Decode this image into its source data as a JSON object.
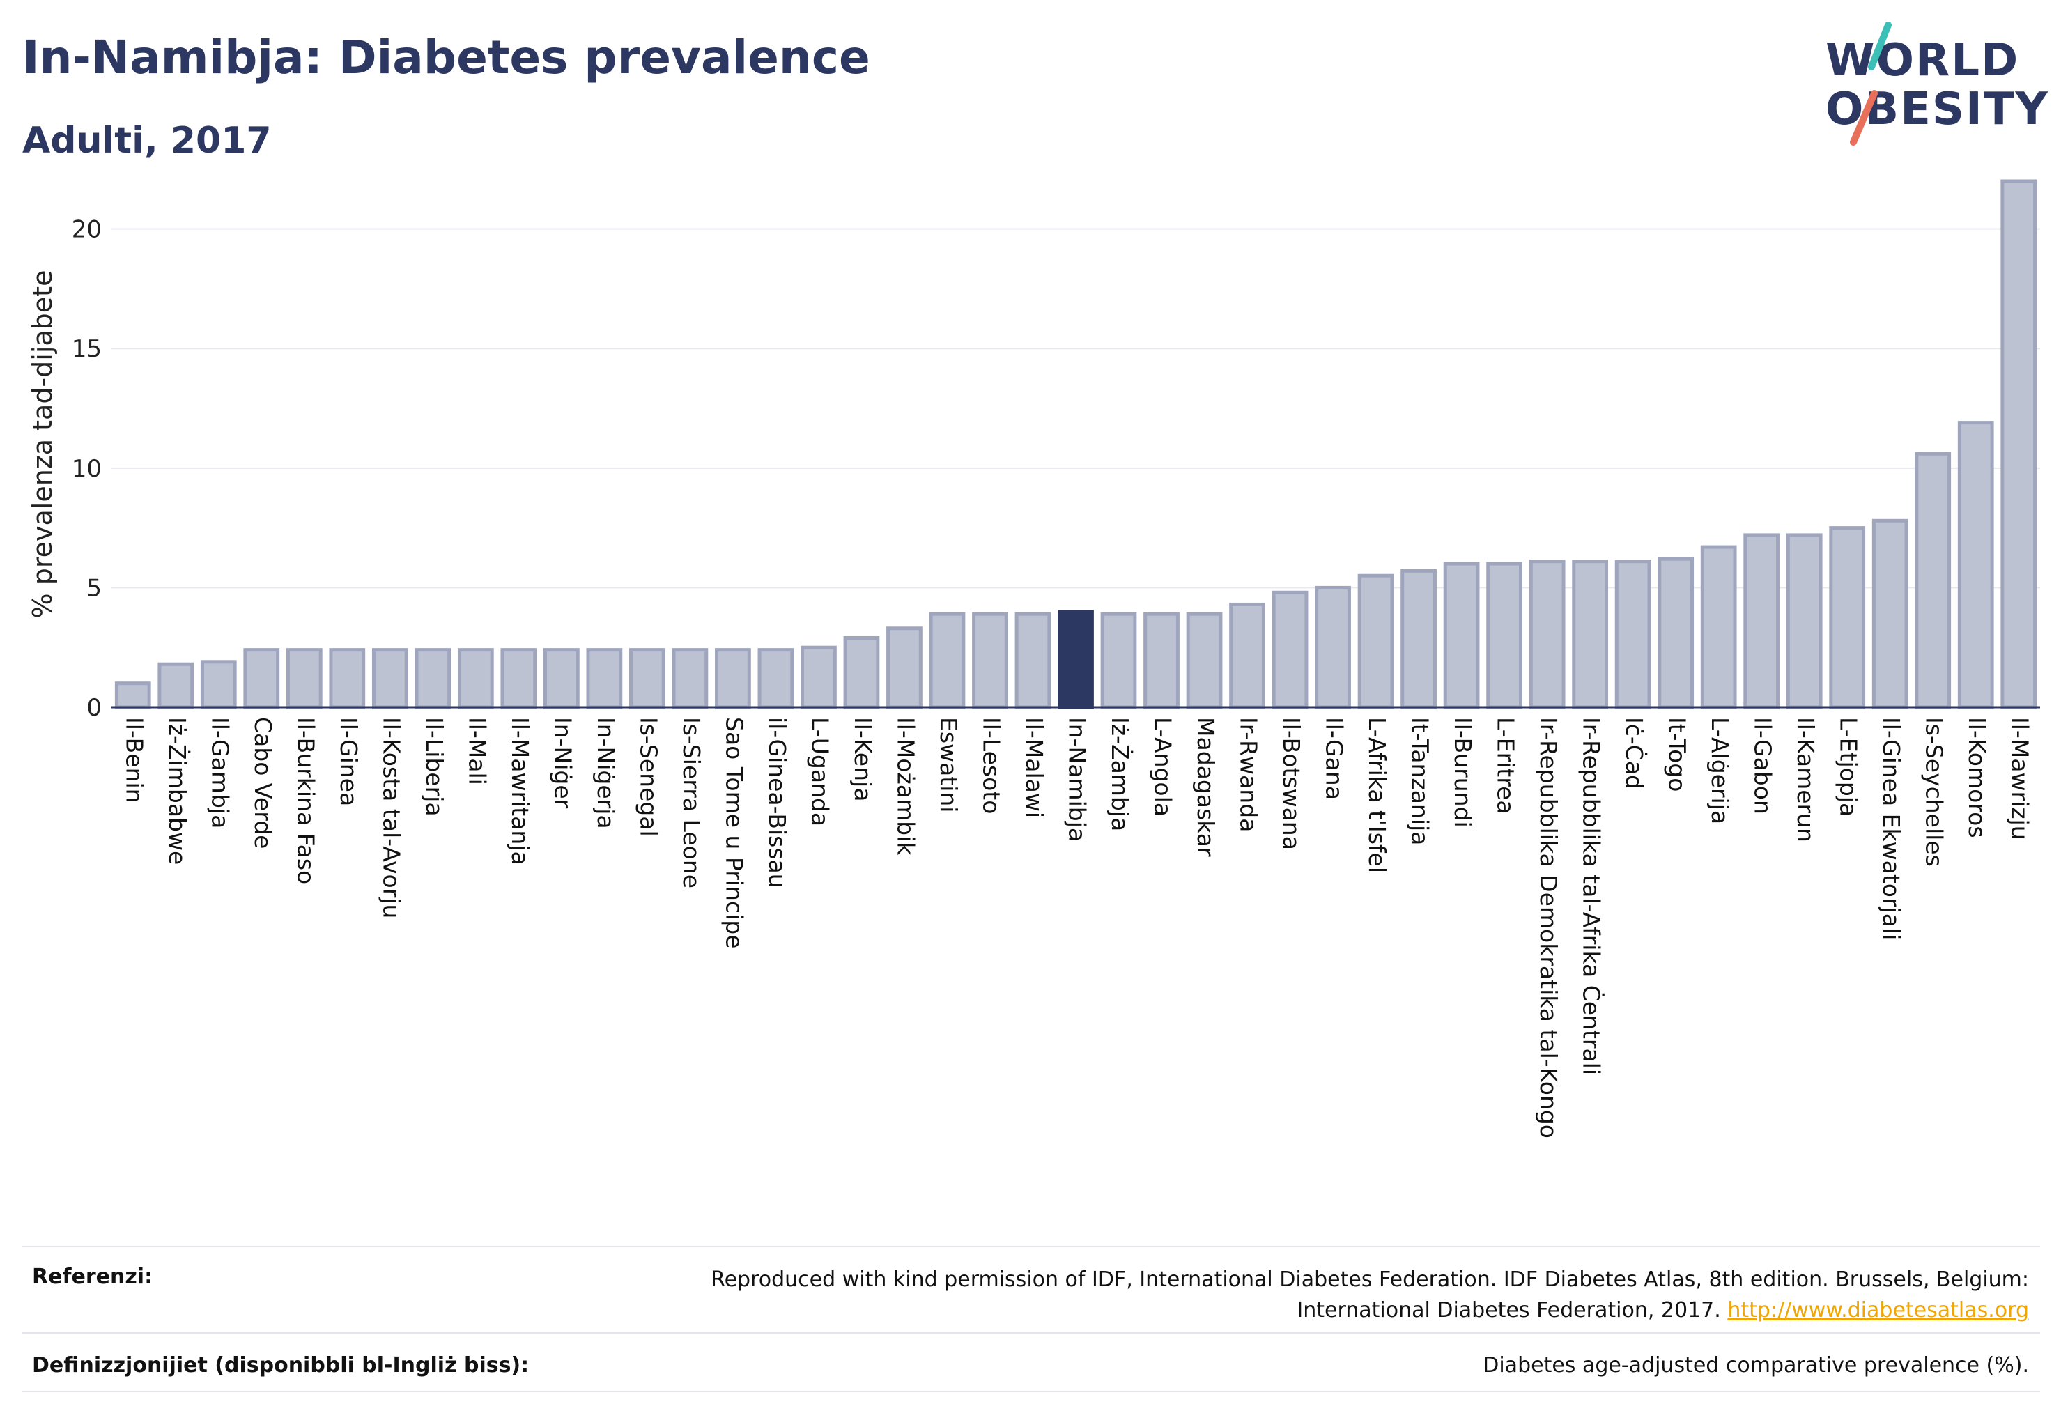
{
  "header": {
    "title": "In-Namibja: Diabetes prevalence",
    "subtitle": "Adulti, 2017"
  },
  "logo": {
    "line1": "WORLD",
    "line2": "OBESITY"
  },
  "colors": {
    "bar": "#bdc2d2",
    "bar_stroke": "#9ea5bd",
    "highlight": "#2c3762",
    "text": "#2c3762",
    "grid": "#e6e8ef",
    "logo_teal": "#3bbfb7",
    "logo_red": "#e8705a"
  },
  "chart_data": {
    "type": "bar",
    "ylabel": "% prevalenza tad-dijabete",
    "ylim": [
      0,
      22
    ],
    "yticks": [
      0,
      5,
      10,
      15,
      20
    ],
    "grid": true,
    "highlight": "In-Namibja",
    "categories": [
      "Il-Benin",
      "Iż-Żimbabwe",
      "Il-Gambja",
      "Cabo Verde",
      "Il-Burkina Faso",
      "Il-Ginea",
      "Il-Kosta tal-Avorju",
      "Il-Liberja",
      "Il-Mali",
      "Il-Mawritanja",
      "In-Niġer",
      "In-Niġerja",
      "Is-Senegal",
      "Is-Sierra Leone",
      "Sao Tome u Principe",
      "il-Ginea-Bissau",
      "L-Uganda",
      "Il-Kenja",
      "Il-Możambik",
      "Eswatini",
      "Il-Lesoto",
      "Il-Malawi",
      "In-Namibja",
      "Iż-Żambja",
      "L-Angola",
      "Madagaskar",
      "Ir-Rwanda",
      "Il-Botswana",
      "Il-Gana",
      "L-Afrika t'Isfel",
      "It-Tanzanija",
      "Il-Burundi",
      "L-Eritrea",
      "Ir-Repubblika Demokratika tal-Kongo",
      "Ir-Repubblika tal-Afrika Ċentrali",
      "Iċ-Ċad",
      "It-Togo",
      "L-Alġerija",
      "Il-Gabon",
      "Il-Kamerun",
      "L-Etjopja",
      "Il-Ginea Ekwatorjali",
      "Is-Seychelles",
      "Il-Komoros",
      "Il-Mawrizju"
    ],
    "values": [
      1.0,
      1.8,
      1.9,
      2.4,
      2.4,
      2.4,
      2.4,
      2.4,
      2.4,
      2.4,
      2.4,
      2.4,
      2.4,
      2.4,
      2.4,
      2.4,
      2.5,
      2.9,
      3.3,
      3.9,
      3.9,
      3.9,
      4.0,
      3.9,
      3.9,
      3.9,
      4.3,
      4.8,
      5.0,
      5.5,
      5.7,
      6.0,
      6.0,
      6.1,
      6.1,
      6.1,
      6.2,
      6.7,
      7.2,
      7.2,
      7.5,
      7.8,
      10.6,
      11.9,
      22.0
    ]
  },
  "footer": {
    "ref_label": "Referenzi:",
    "ref_text": "Reproduced with kind permission of IDF, International Diabetes Federation. IDF Diabetes Atlas, 8th edition. Brussels, Belgium: International Diabetes Federation, 2017.",
    "ref_link": "http://www.diabetesatlas.org",
    "def_label": "Definizzjonijiet (disponibbli bl-Ingliż biss):",
    "def_text": "Diabetes age-adjusted comparative prevalence (%)."
  }
}
